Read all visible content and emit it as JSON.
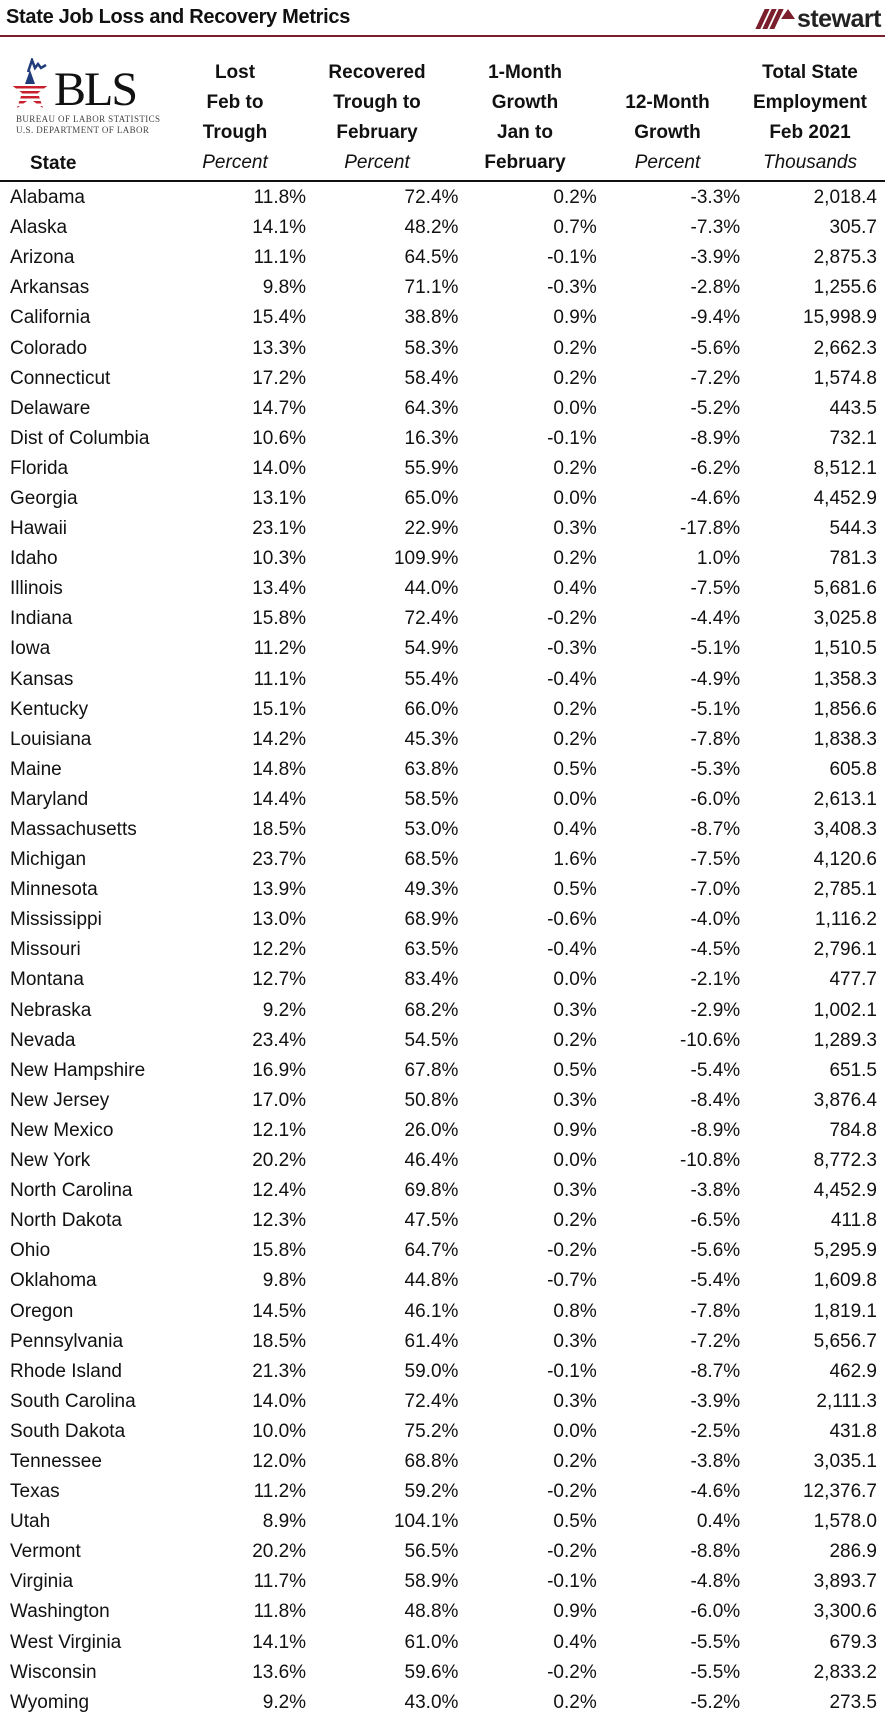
{
  "header": {
    "title": "State Job Loss and Recovery Metrics",
    "brand": "stewart",
    "brand_color": "#7a1f2b"
  },
  "bls_logo": {
    "letters": "BLS",
    "line1": "BUREAU OF LABOR STATISTICS",
    "line2": "U.S. DEPARTMENT OF LABOR"
  },
  "columns": [
    {
      "lines": [
        "State"
      ],
      "unit": ""
    },
    {
      "lines": [
        "Lost",
        "Feb to",
        "Trough"
      ],
      "unit": "Percent"
    },
    {
      "lines": [
        "Recovered",
        "Trough to",
        "February"
      ],
      "unit": "Percent"
    },
    {
      "lines": [
        "1-Month",
        "Growth",
        "Jan to",
        "February"
      ],
      "unit": ""
    },
    {
      "lines": [
        "12-Month",
        "Growth"
      ],
      "unit": "Percent"
    },
    {
      "lines": [
        "Total State",
        "Employment",
        "Feb 2021"
      ],
      "unit": "Thousands"
    }
  ],
  "chart_data": {
    "type": "table",
    "title": "State Job Loss and Recovery Metrics",
    "source": "BLS",
    "headers": [
      "State",
      "Lost Feb to Trough (Percent)",
      "Recovered Trough to February (Percent)",
      "1-Month Growth Jan to February",
      "12-Month Growth (Percent)",
      "Total State Employment Feb 2021 (Thousands)"
    ],
    "rows": [
      [
        "Alabama",
        "11.8%",
        "72.4%",
        "0.2%",
        "-3.3%",
        "2,018.4"
      ],
      [
        "Alaska",
        "14.1%",
        "48.2%",
        "0.7%",
        "-7.3%",
        "305.7"
      ],
      [
        "Arizona",
        "11.1%",
        "64.5%",
        "-0.1%",
        "-3.9%",
        "2,875.3"
      ],
      [
        "Arkansas",
        "9.8%",
        "71.1%",
        "-0.3%",
        "-2.8%",
        "1,255.6"
      ],
      [
        "California",
        "15.4%",
        "38.8%",
        "0.9%",
        "-9.4%",
        "15,998.9"
      ],
      [
        "Colorado",
        "13.3%",
        "58.3%",
        "0.2%",
        "-5.6%",
        "2,662.3"
      ],
      [
        "Connecticut",
        "17.2%",
        "58.4%",
        "0.2%",
        "-7.2%",
        "1,574.8"
      ],
      [
        "Delaware",
        "14.7%",
        "64.3%",
        "0.0%",
        "-5.2%",
        "443.5"
      ],
      [
        "Dist of Columbia",
        "10.6%",
        "16.3%",
        "-0.1%",
        "-8.9%",
        "732.1"
      ],
      [
        "Florida",
        "14.0%",
        "55.9%",
        "0.2%",
        "-6.2%",
        "8,512.1"
      ],
      [
        "Georgia",
        "13.1%",
        "65.0%",
        "0.0%",
        "-4.6%",
        "4,452.9"
      ],
      [
        "Hawaii",
        "23.1%",
        "22.9%",
        "0.3%",
        "-17.8%",
        "544.3"
      ],
      [
        "Idaho",
        "10.3%",
        "109.9%",
        "0.2%",
        "1.0%",
        "781.3"
      ],
      [
        "Illinois",
        "13.4%",
        "44.0%",
        "0.4%",
        "-7.5%",
        "5,681.6"
      ],
      [
        "Indiana",
        "15.8%",
        "72.4%",
        "-0.2%",
        "-4.4%",
        "3,025.8"
      ],
      [
        "Iowa",
        "11.2%",
        "54.9%",
        "-0.3%",
        "-5.1%",
        "1,510.5"
      ],
      [
        "Kansas",
        "11.1%",
        "55.4%",
        "-0.4%",
        "-4.9%",
        "1,358.3"
      ],
      [
        "Kentucky",
        "15.1%",
        "66.0%",
        "0.2%",
        "-5.1%",
        "1,856.6"
      ],
      [
        "Louisiana",
        "14.2%",
        "45.3%",
        "0.2%",
        "-7.8%",
        "1,838.3"
      ],
      [
        "Maine",
        "14.8%",
        "63.8%",
        "0.5%",
        "-5.3%",
        "605.8"
      ],
      [
        "Maryland",
        "14.4%",
        "58.5%",
        "0.0%",
        "-6.0%",
        "2,613.1"
      ],
      [
        "Massachusetts",
        "18.5%",
        "53.0%",
        "0.4%",
        "-8.7%",
        "3,408.3"
      ],
      [
        "Michigan",
        "23.7%",
        "68.5%",
        "1.6%",
        "-7.5%",
        "4,120.6"
      ],
      [
        "Minnesota",
        "13.9%",
        "49.3%",
        "0.5%",
        "-7.0%",
        "2,785.1"
      ],
      [
        "Mississippi",
        "13.0%",
        "68.9%",
        "-0.6%",
        "-4.0%",
        "1,116.2"
      ],
      [
        "Missouri",
        "12.2%",
        "63.5%",
        "-0.4%",
        "-4.5%",
        "2,796.1"
      ],
      [
        "Montana",
        "12.7%",
        "83.4%",
        "0.0%",
        "-2.1%",
        "477.7"
      ],
      [
        "Nebraska",
        "9.2%",
        "68.2%",
        "0.3%",
        "-2.9%",
        "1,002.1"
      ],
      [
        "Nevada",
        "23.4%",
        "54.5%",
        "0.2%",
        "-10.6%",
        "1,289.3"
      ],
      [
        "New Hampshire",
        "16.9%",
        "67.8%",
        "0.5%",
        "-5.4%",
        "651.5"
      ],
      [
        "New Jersey",
        "17.0%",
        "50.8%",
        "0.3%",
        "-8.4%",
        "3,876.4"
      ],
      [
        "New Mexico",
        "12.1%",
        "26.0%",
        "0.9%",
        "-8.9%",
        "784.8"
      ],
      [
        "New York",
        "20.2%",
        "46.4%",
        "0.0%",
        "-10.8%",
        "8,772.3"
      ],
      [
        "North Carolina",
        "12.4%",
        "69.8%",
        "0.3%",
        "-3.8%",
        "4,452.9"
      ],
      [
        "North Dakota",
        "12.3%",
        "47.5%",
        "0.2%",
        "-6.5%",
        "411.8"
      ],
      [
        "Ohio",
        "15.8%",
        "64.7%",
        "-0.2%",
        "-5.6%",
        "5,295.9"
      ],
      [
        "Oklahoma",
        "9.8%",
        "44.8%",
        "-0.7%",
        "-5.4%",
        "1,609.8"
      ],
      [
        "Oregon",
        "14.5%",
        "46.1%",
        "0.8%",
        "-7.8%",
        "1,819.1"
      ],
      [
        "Pennsylvania",
        "18.5%",
        "61.4%",
        "0.3%",
        "-7.2%",
        "5,656.7"
      ],
      [
        "Rhode Island",
        "21.3%",
        "59.0%",
        "-0.1%",
        "-8.7%",
        "462.9"
      ],
      [
        "South Carolina",
        "14.0%",
        "72.4%",
        "0.3%",
        "-3.9%",
        "2,111.3"
      ],
      [
        "South Dakota",
        "10.0%",
        "75.2%",
        "0.0%",
        "-2.5%",
        "431.8"
      ],
      [
        "Tennessee",
        "12.0%",
        "68.8%",
        "0.2%",
        "-3.8%",
        "3,035.1"
      ],
      [
        "Texas",
        "11.2%",
        "59.2%",
        "-0.2%",
        "-4.6%",
        "12,376.7"
      ],
      [
        "Utah",
        "8.9%",
        "104.1%",
        "0.5%",
        "0.4%",
        "1,578.0"
      ],
      [
        "Vermont",
        "20.2%",
        "56.5%",
        "-0.2%",
        "-8.8%",
        "286.9"
      ],
      [
        "Virginia",
        "11.7%",
        "58.9%",
        "-0.1%",
        "-4.8%",
        "3,893.7"
      ],
      [
        "Washington",
        "11.8%",
        "48.8%",
        "0.9%",
        "-6.0%",
        "3,300.6"
      ],
      [
        "West Virginia",
        "14.1%",
        "61.0%",
        "0.4%",
        "-5.5%",
        "679.3"
      ],
      [
        "Wisconsin",
        "13.6%",
        "59.6%",
        "-0.2%",
        "-5.5%",
        "2,833.2"
      ],
      [
        "Wyoming",
        "9.2%",
        "43.0%",
        "0.2%",
        "-5.2%",
        "273.5"
      ]
    ]
  }
}
